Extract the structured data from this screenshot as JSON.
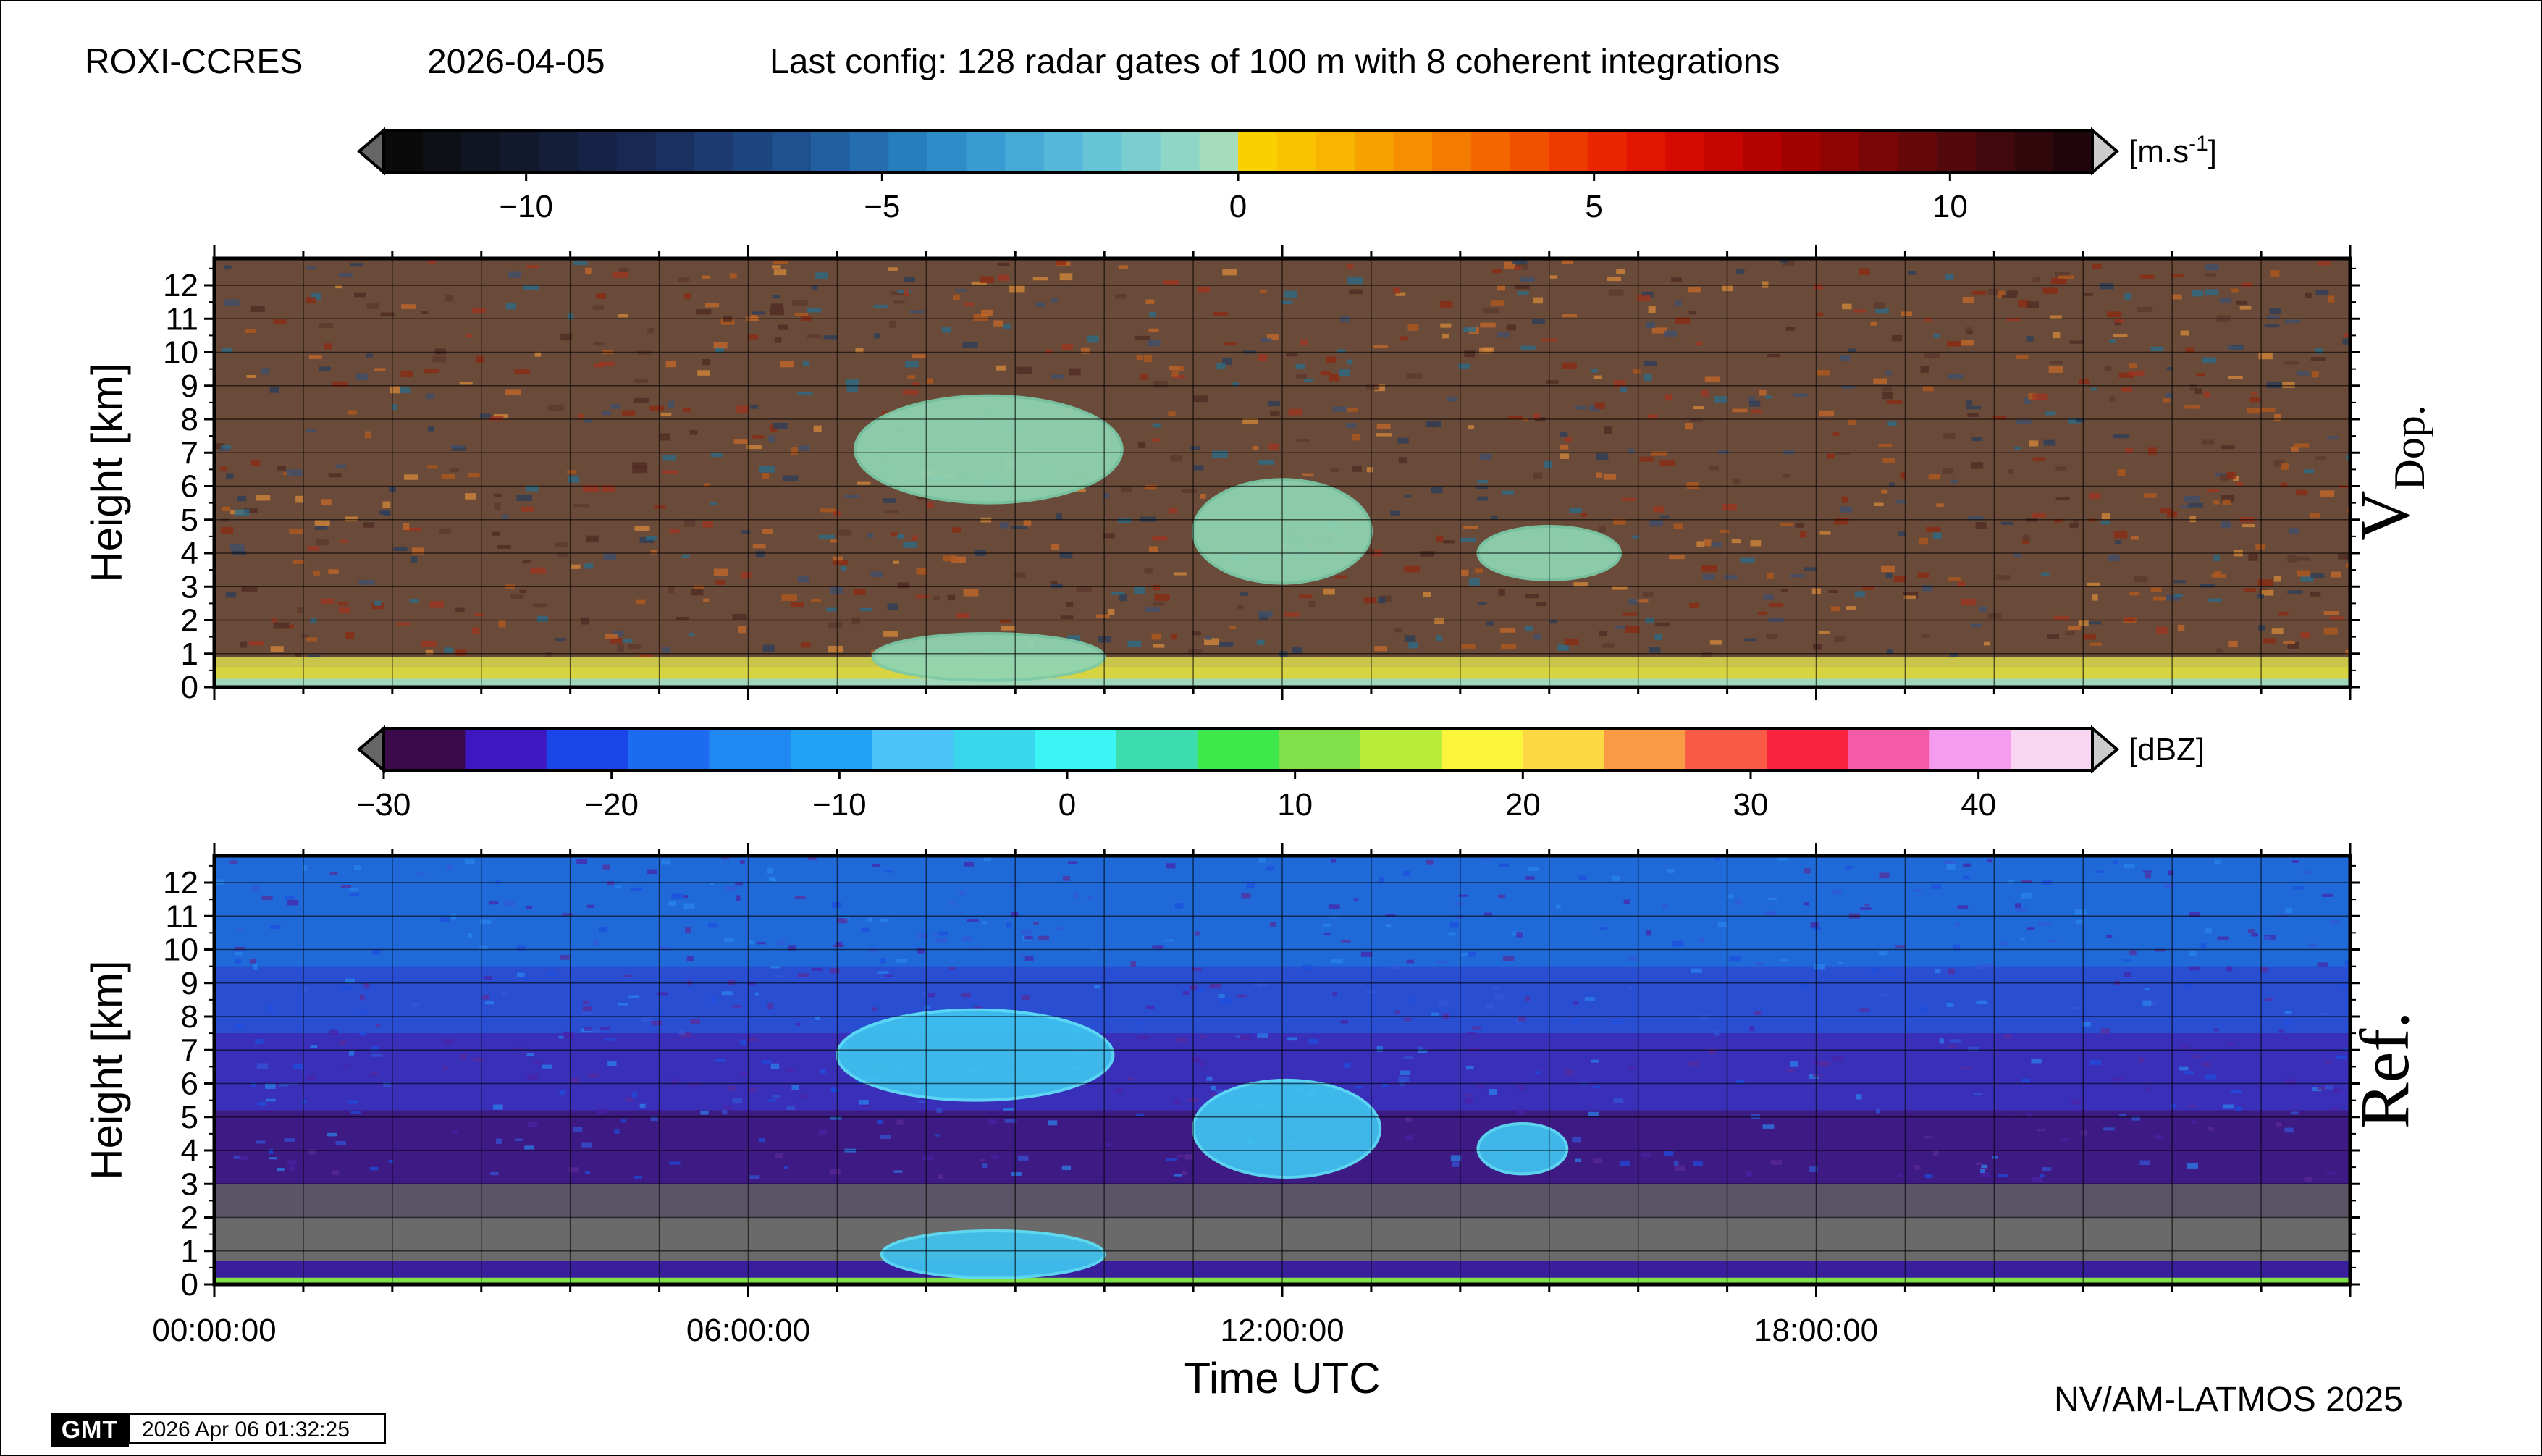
{
  "header": {
    "site": "ROXI-CCRES",
    "date": "2026-04-05",
    "config": "Last config: 128 radar gates of 100 m with 8 coherent integrations"
  },
  "footer": {
    "credit": "NV/AM-LATMOS 2025",
    "gmt_logo": "GMT",
    "timestamp": "2026 Apr 06 01:32:25"
  },
  "chart_data": [
    {
      "type": "heatmap",
      "name": "doppler-velocity",
      "side_label": "V",
      "side_label_sub": "Dop.",
      "ylabel": "Height [km]",
      "xlabel": "",
      "ylim": [
        0,
        12.8
      ],
      "xlim_hours": [
        0,
        24
      ],
      "y_ticks": [
        "0",
        "1",
        "2",
        "3",
        "4",
        "5",
        "6",
        "7",
        "8",
        "9",
        "10",
        "11",
        "12"
      ],
      "colorbar": {
        "unit_base": "[m.s",
        "unit_exp": "-1",
        "unit_tail": "]",
        "range": [
          -12,
          12
        ],
        "ticks": [
          -10,
          -5,
          0,
          5,
          10
        ],
        "tick_labels": [
          "−10",
          "−5",
          "0",
          "5",
          "10"
        ],
        "colors": [
          "#0a0a0a",
          "#0d1016",
          "#101621",
          "#13192c",
          "#151e39",
          "#172346",
          "#182853",
          "#1a3061",
          "#1c3a70",
          "#1d4580",
          "#1f5190",
          "#215fa0",
          "#246eaf",
          "#287dbd",
          "#2e8cc8",
          "#389bd1",
          "#45aad6",
          "#55b8d8",
          "#67c4d6",
          "#7bced0",
          "#8fd6c7",
          "#a4dcbc",
          "#f9d000",
          "#f9c300",
          "#f8b400",
          "#f7a200",
          "#f68f00",
          "#f57b00",
          "#f36600",
          "#f15100",
          "#ee3b00",
          "#ea2600",
          "#e21500",
          "#d50a00",
          "#c50500",
          "#b30300",
          "#a00300",
          "#8d0403",
          "#790507",
          "#66070a",
          "#53080c",
          "#41080d",
          "#30080c",
          "#20060a"
        ]
      },
      "cloud_regions": [
        {
          "t0": 7.2,
          "t1": 10.2,
          "h0": 5.5,
          "h1": 8.7
        },
        {
          "t0": 11.0,
          "t1": 13.0,
          "h0": 3.1,
          "h1": 6.2
        },
        {
          "t0": 14.2,
          "t1": 15.8,
          "h0": 3.2,
          "h1": 4.8
        },
        {
          "t0": 7.4,
          "t1": 10.0,
          "h0": 0.2,
          "h1": 1.6
        }
      ]
    },
    {
      "type": "heatmap",
      "name": "reflectivity",
      "side_label": "Ref.",
      "ylabel": "Height [km]",
      "xlabel": "Time UTC",
      "ylim": [
        0,
        12.8
      ],
      "xlim_hours": [
        0,
        24
      ],
      "y_ticks": [
        "0",
        "1",
        "2",
        "3",
        "4",
        "5",
        "6",
        "7",
        "8",
        "9",
        "10",
        "11",
        "12"
      ],
      "x_ticks": [
        "00:00:00",
        "06:00:00",
        "12:00:00",
        "18:00:00"
      ],
      "x_tick_hours": [
        0,
        6,
        12,
        18
      ],
      "colorbar": {
        "unit_base": "[dBZ",
        "unit_exp": "",
        "unit_tail": "]",
        "range": [
          -30,
          45
        ],
        "ticks": [
          -30,
          -20,
          -10,
          0,
          10,
          20,
          30,
          40
        ],
        "tick_labels": [
          "−30",
          "−20",
          "−10",
          "0",
          "10",
          "20",
          "30",
          "40"
        ],
        "colors": [
          "#3a0a4a",
          "#3e17c0",
          "#1a45e8",
          "#1d6bee",
          "#1f88f2",
          "#22a2f5",
          "#4dc2f8",
          "#3ad6ee",
          "#3cf4f4",
          "#3ddcae",
          "#3ce84a",
          "#80e04a",
          "#b8ec3a",
          "#fbf53c",
          "#fcd844",
          "#fb9a44",
          "#f95a44",
          "#f92340",
          "#f55aa8",
          "#f69cf0",
          "#f8d6f2"
        ]
      },
      "cloud_regions": [
        {
          "t0": 7.0,
          "t1": 10.1,
          "h0": 5.5,
          "h1": 8.2
        },
        {
          "t0": 11.0,
          "t1": 13.1,
          "h0": 3.2,
          "h1": 6.1
        },
        {
          "t0": 14.2,
          "t1": 15.2,
          "h0": 3.3,
          "h1": 4.8
        },
        {
          "t0": 7.5,
          "t1": 10.0,
          "h0": 0.2,
          "h1": 1.6
        }
      ]
    }
  ]
}
